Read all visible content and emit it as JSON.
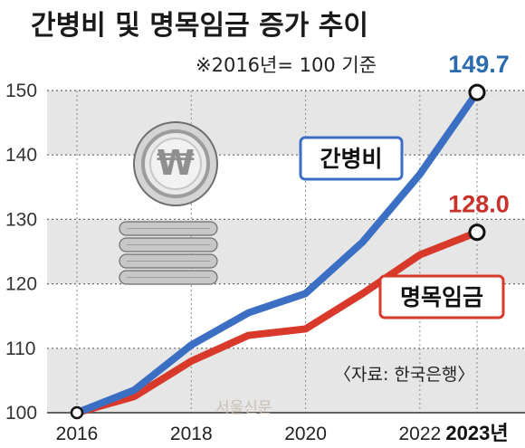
{
  "title": "간병비 및 명목임금 증가 추이",
  "note": "※2016년= 100 기준",
  "source": "〈자료: 한국은행〉",
  "watermark": "서울신문",
  "coin_icon": "won-coin-stack-icon",
  "colors": {
    "care": "#3a6fc4",
    "wage": "#d8392b",
    "care_label": "#2b6cb0",
    "wage_label": "#c8322a",
    "band": "#e6e6e6"
  },
  "chart_data": {
    "type": "line",
    "title": "간병비 및 명목임금 증가 추이",
    "x": [
      2016,
      2017,
      2018,
      2019,
      2020,
      2021,
      2022,
      2023
    ],
    "x_tick_labels": [
      {
        "x": 2016,
        "label": "2016"
      },
      {
        "x": 2018,
        "label": "2018"
      },
      {
        "x": 2020,
        "label": "2020"
      },
      {
        "x": 2022,
        "label": "2022"
      },
      {
        "x": 2023,
        "label": "2023년"
      }
    ],
    "y_ticks": [
      100,
      110,
      120,
      130,
      140,
      150
    ],
    "ylim": [
      100,
      150
    ],
    "xlim": [
      2016,
      2023
    ],
    "grid": true,
    "series": [
      {
        "name": "간병비",
        "key": "care",
        "values": [
          100,
          103.5,
          110.5,
          115.5,
          118.5,
          126.5,
          137,
          149.7
        ],
        "end_label": "149.7"
      },
      {
        "name": "명목임금",
        "key": "wage",
        "values": [
          100,
          102.5,
          108,
          112,
          113,
          118.5,
          124.5,
          128.0
        ],
        "end_label": "128.0"
      }
    ]
  }
}
